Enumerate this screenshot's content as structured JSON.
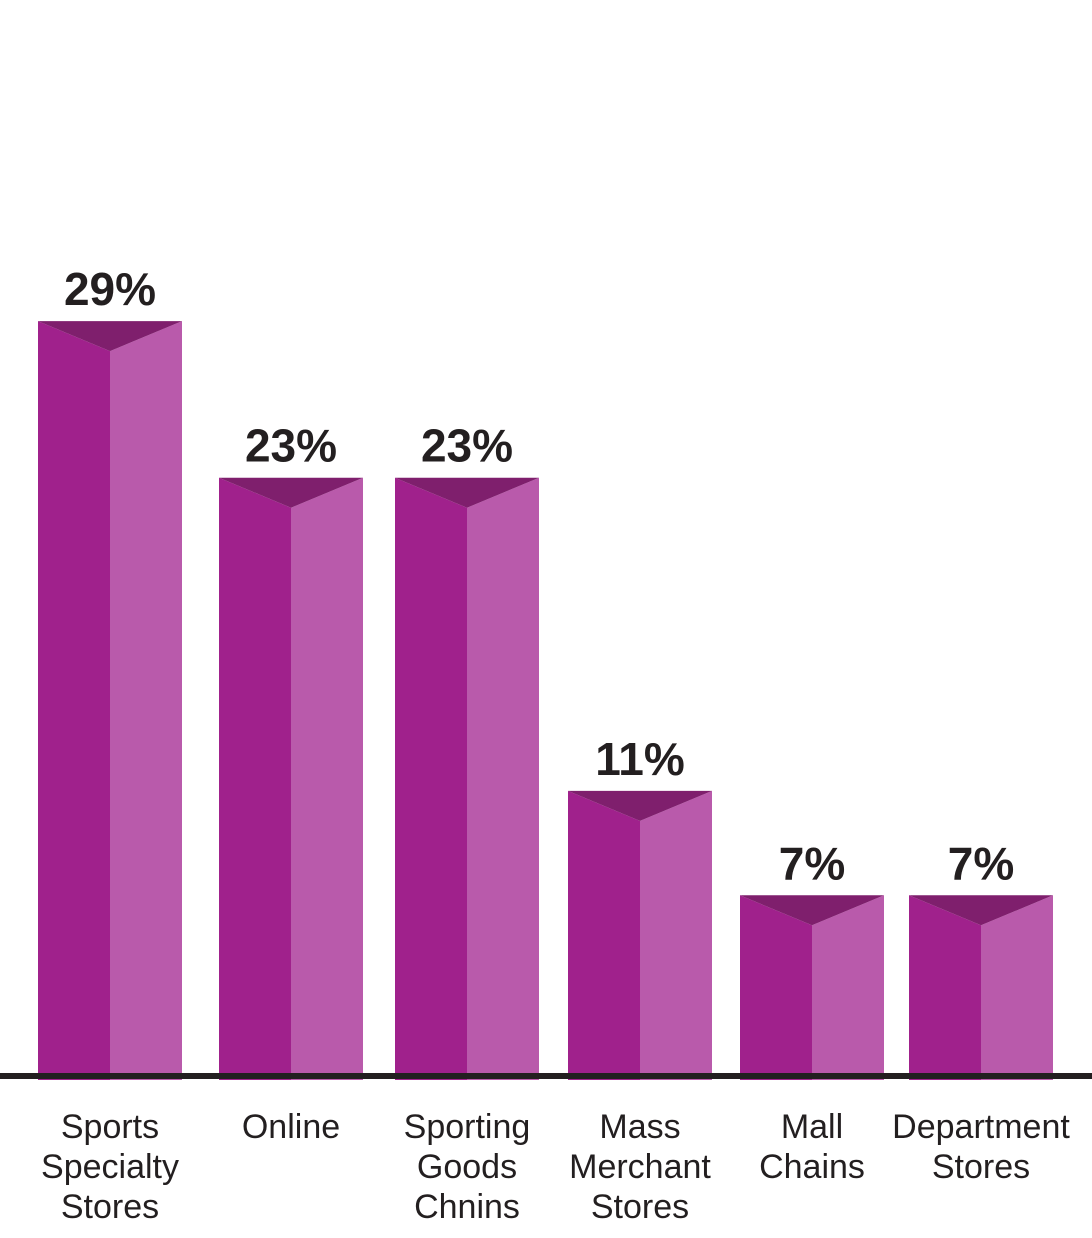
{
  "chart_data": {
    "type": "bar",
    "title": "",
    "xlabel": "",
    "ylabel": "",
    "categories": [
      [
        "Sports",
        "Specialty",
        "Stores"
      ],
      [
        "Online"
      ],
      [
        "Sporting",
        "Goods",
        "Chnins"
      ],
      [
        "Mass",
        "Merchant",
        "Stores"
      ],
      [
        "Mall",
        "Chains"
      ],
      [
        "Department",
        "Stores"
      ]
    ],
    "values": [
      29,
      23,
      23,
      11,
      7,
      7
    ],
    "data_labels": [
      "29%",
      "23%",
      "23%",
      "11%",
      "7%",
      "7%"
    ],
    "ylim": [
      0,
      40
    ],
    "grid": false,
    "legend": "none",
    "colors": {
      "front": "#a0218c",
      "side": "#b95aab",
      "top": "#7f1f6d",
      "axis": "#231f20"
    }
  }
}
